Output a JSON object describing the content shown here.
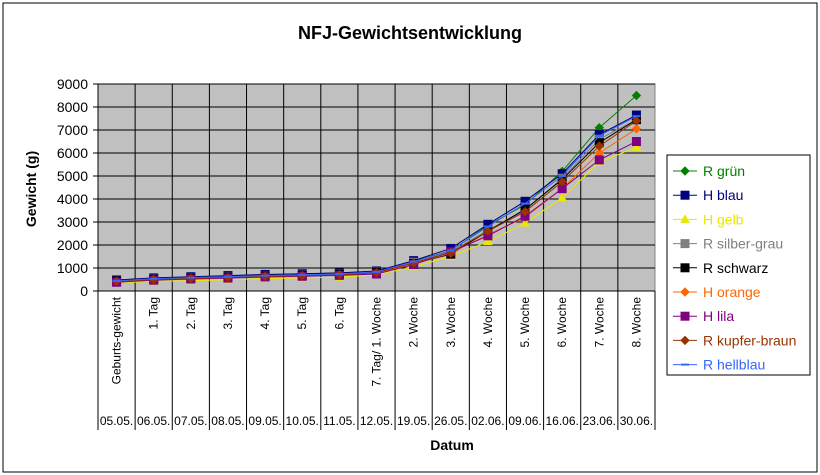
{
  "chart_data": {
    "type": "line",
    "title": "NFJ-Gewichtsentwicklung",
    "xlabel": "Datum",
    "ylabel": "Gewicht (g)",
    "ylim": [
      0,
      9000
    ],
    "yticks": [
      "0",
      "1000",
      "2000",
      "3000",
      "4000",
      "5000",
      "6000",
      "7000",
      "8000",
      "9000"
    ],
    "grid": "horizontal+vertical",
    "legend_position": "right",
    "categories": [
      "Geburts-gewicht",
      "1. Tag",
      "2. Tag",
      "3. Tag",
      "4. Tag",
      "5. Tag",
      "6. Tag",
      "7. Tag/ 1. Woche",
      "2. Woche",
      "3. Woche",
      "4. Woche",
      "5. Woche",
      "6. Woche",
      "7. Woche",
      "8. Woche"
    ],
    "dates": [
      "05.05.",
      "06.05.",
      "07.05.",
      "08.05.",
      "09.05.",
      "10.05.",
      "11.05.",
      "12.05.",
      "19.05.",
      "26.05.",
      "02.06.",
      "09.06.",
      "16.06.",
      "23.06.",
      "30.06."
    ],
    "series": [
      {
        "name": "R grün",
        "color": "#008000",
        "marker": "diamond",
        "values": [
          470,
          560,
          610,
          660,
          710,
          740,
          780,
          860,
          1300,
          1750,
          2850,
          3750,
          5200,
          7100,
          8500
        ]
      },
      {
        "name": "H blau",
        "color": "#000080",
        "marker": "square",
        "values": [
          480,
          570,
          620,
          670,
          720,
          750,
          790,
          870,
          1320,
          1850,
          2900,
          3900,
          5100,
          6800,
          7650
        ]
      },
      {
        "name": "H gelb",
        "color": "#e8e800",
        "marker": "triangle",
        "values": [
          360,
          420,
          450,
          490,
          540,
          570,
          600,
          700,
          1050,
          1500,
          2150,
          2950,
          4050,
          5600,
          6250
        ]
      },
      {
        "name": "R silber-grau",
        "color": "#808080",
        "marker": "square",
        "values": [
          430,
          520,
          570,
          610,
          660,
          690,
          730,
          820,
          1250,
          1700,
          2650,
          3500,
          4900,
          6600,
          7450
        ]
      },
      {
        "name": "R schwarz",
        "color": "#000000",
        "marker": "square",
        "values": [
          430,
          510,
          560,
          600,
          650,
          680,
          720,
          810,
          1200,
          1600,
          2600,
          3550,
          4850,
          6450,
          7450
        ]
      },
      {
        "name": "H orange",
        "color": "#ff6600",
        "marker": "diamond",
        "values": [
          400,
          490,
          540,
          580,
          630,
          660,
          700,
          780,
          1180,
          1650,
          2450,
          3200,
          4450,
          6000,
          7050
        ]
      },
      {
        "name": "H lila",
        "color": "#800080",
        "marker": "square",
        "values": [
          380,
          470,
          520,
          560,
          610,
          640,
          680,
          740,
          1150,
          1700,
          2400,
          3250,
          4450,
          5700,
          6500
        ]
      },
      {
        "name": "R kupfer-braun",
        "color": "#993300",
        "marker": "diamond",
        "values": [
          420,
          500,
          550,
          590,
          640,
          670,
          710,
          790,
          1220,
          1680,
          2600,
          3450,
          4750,
          6300,
          7400
        ]
      },
      {
        "name": "R hellblau",
        "color": "#3366ff",
        "marker": "dash",
        "values": [
          440,
          530,
          580,
          620,
          670,
          700,
          740,
          830,
          1280,
          1760,
          2800,
          3800,
          5000,
          6750,
          7600
        ]
      }
    ]
  }
}
